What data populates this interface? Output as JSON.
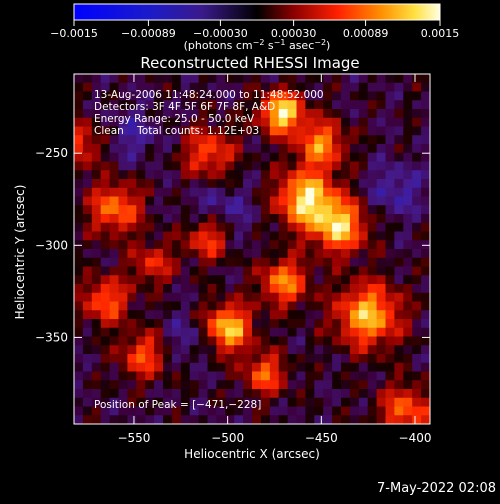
{
  "chart_data": {
    "type": "heatmap",
    "title": "Reconstructed RHESSI Image",
    "xlabel": "Heliocentric X (arcsec)",
    "ylabel": "Heliocentric Y (arcsec)",
    "xlim": [
      -582,
      -392
    ],
    "ylim": [
      -397,
      -207
    ],
    "xticks": [
      -550,
      -500,
      -450,
      -400
    ],
    "xtick_labels": [
      "−550",
      "−500",
      "−450",
      "−400"
    ],
    "yticks": [
      -250,
      -300,
      -350
    ],
    "ytick_labels": [
      "−250",
      "−300",
      "−350"
    ],
    "colorbar": {
      "min": -0.0015,
      "max": 0.0015,
      "ticks": [
        -0.0015,
        -0.00089,
        -0.0003,
        0.0003,
        0.00089,
        0.0015
      ],
      "tick_labels": [
        "−0.0015",
        "−0.00089",
        "−0.00030",
        "0.00030",
        "0.00089",
        "0.0015"
      ],
      "unit_parts": [
        "(photons cm",
        "−2",
        " s",
        "−1",
        " asec",
        "−2",
        ")"
      ]
    },
    "info_lines": [
      "13-Aug-2006 11:48:24.000 to 11:48:52.000",
      "Detectors: 3F 4F 5F 6F 7F 8F, A&D",
      "Energy Range: 25.0 - 50.0 keV",
      "Clean    Total counts: 1.12E+03"
    ],
    "peak_label": "Position of Peak = [−471,−228]",
    "peak": [
      -471,
      -228
    ],
    "grid_rows": 40,
    "grid_cols": 40,
    "blobs": [
      {
        "x": -471,
        "y": -228,
        "v": 1.0,
        "s": 8
      },
      {
        "x": -458,
        "y": -275,
        "v": 0.95,
        "s": 11
      },
      {
        "x": -440,
        "y": -290,
        "v": 0.85,
        "s": 10
      },
      {
        "x": -500,
        "y": -345,
        "v": 0.9,
        "s": 9
      },
      {
        "x": -425,
        "y": -338,
        "v": 0.85,
        "s": 12
      },
      {
        "x": -510,
        "y": -295,
        "v": 0.7,
        "s": 9
      },
      {
        "x": -560,
        "y": -280,
        "v": 0.65,
        "s": 10
      },
      {
        "x": -565,
        "y": -330,
        "v": 0.6,
        "s": 9
      },
      {
        "x": -545,
        "y": -360,
        "v": 0.55,
        "s": 9
      },
      {
        "x": -480,
        "y": -370,
        "v": 0.6,
        "s": 8
      },
      {
        "x": -450,
        "y": -245,
        "v": 0.7,
        "s": 9
      },
      {
        "x": -405,
        "y": -390,
        "v": 0.6,
        "s": 10
      },
      {
        "x": -470,
        "y": -320,
        "v": 0.7,
        "s": 9
      },
      {
        "x": -540,
        "y": -310,
        "v": 0.45,
        "s": 8
      },
      {
        "x": -510,
        "y": -250,
        "v": 0.55,
        "s": 10
      },
      {
        "x": -580,
        "y": -245,
        "v": 0.5,
        "s": 9
      }
    ],
    "blue_patches": [
      {
        "x": -505,
        "y": -285,
        "v": -0.35,
        "s": 12
      },
      {
        "x": -550,
        "y": -240,
        "v": -0.25,
        "s": 10
      },
      {
        "x": -410,
        "y": -270,
        "v": -0.3,
        "s": 10
      },
      {
        "x": -520,
        "y": -350,
        "v": -0.25,
        "s": 9
      }
    ]
  },
  "footer": {
    "timestamp": "7-May-2022 02:08"
  }
}
